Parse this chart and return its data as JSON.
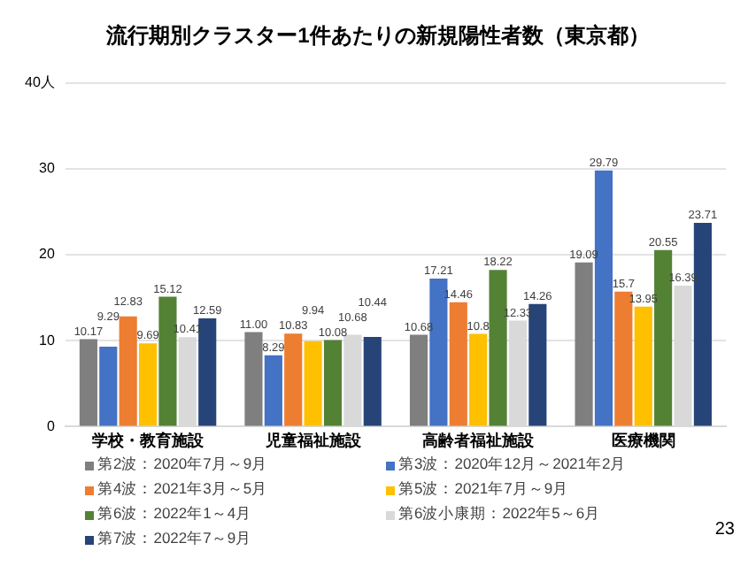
{
  "chart_data": {
    "type": "bar",
    "title": "流行期別クラスター1件あたりの新規陽性者数（東京都）",
    "categories": [
      "学校・教育施設",
      "児童福祉施設",
      "高齢者福祉施設",
      "医療機関"
    ],
    "series": [
      {
        "name": "第2波：2020年7月～9月",
        "color": "#7f7f7f",
        "values": [
          10.17,
          11.0,
          10.68,
          19.09
        ],
        "value_labels": [
          "10.17",
          "11.00",
          "10.68",
          "19.09"
        ]
      },
      {
        "name": "第3波：2020年12月～2021年2月",
        "color": "#4472c4",
        "values": [
          9.29,
          8.29,
          17.21,
          29.79
        ],
        "value_labels": [
          "9.29",
          "8.29",
          "17.21",
          "29.79"
        ]
      },
      {
        "name": "第4波：2021年3月～5月",
        "color": "#ed7d31",
        "values": [
          12.83,
          10.83,
          14.46,
          15.7
        ],
        "value_labels": [
          "12.83",
          "10.83",
          "14.46",
          "15.7"
        ]
      },
      {
        "name": "第5波：2021年7月～9月",
        "color": "#ffc000",
        "values": [
          9.69,
          9.94,
          10.8,
          13.95
        ],
        "value_labels": [
          "9.69",
          "9.94",
          "10.8",
          "13.95"
        ]
      },
      {
        "name": "第6波：2022年1～4月",
        "color": "#548235",
        "values": [
          15.12,
          10.08,
          18.22,
          20.55
        ],
        "value_labels": [
          "15.12",
          "10.08",
          "18.22",
          "20.55"
        ]
      },
      {
        "name": "第6波小康期：2022年5～6月",
        "color": "#d9d9d9",
        "values": [
          10.41,
          10.68,
          12.33,
          16.39
        ],
        "value_labels": [
          "10.41",
          "10.68",
          "12.33",
          "16.39"
        ]
      },
      {
        "name": "第7波：2022年7～9月",
        "color": "#264478",
        "values": [
          12.59,
          10.44,
          14.26,
          23.71
        ],
        "value_labels": [
          "12.59",
          "10.44",
          "14.26",
          "23.71"
        ]
      }
    ],
    "ylim": [
      0,
      40
    ],
    "yticks": [
      0,
      10,
      20,
      30,
      {
        "value": 40,
        "label": "40人"
      }
    ],
    "grid": "y",
    "legend": "bottom",
    "annotations": [
      "23"
    ]
  }
}
